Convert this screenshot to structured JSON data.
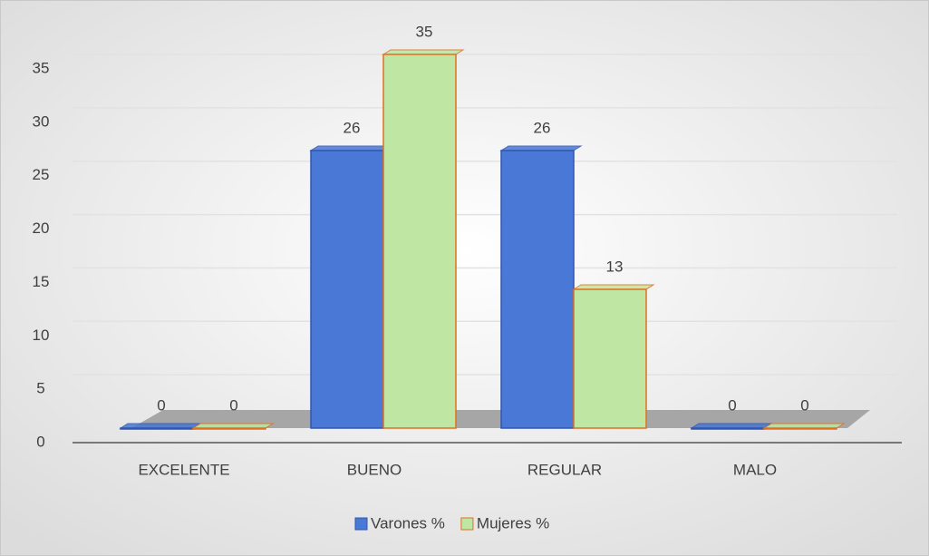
{
  "chart_data": {
    "type": "bar",
    "categories": [
      "EXCELENTE",
      "BUENO",
      "REGULAR",
      "MALO"
    ],
    "series": [
      {
        "name": "Varones %",
        "color": "#4a78d6",
        "values": [
          0,
          26,
          26,
          0
        ]
      },
      {
        "name": "Mujeres %",
        "color": "#bfe6a2",
        "values": [
          0,
          35,
          13,
          0
        ]
      }
    ],
    "ylim": [
      0,
      35
    ],
    "yticks": [
      0,
      5,
      10,
      15,
      20,
      25,
      30,
      35
    ],
    "grid": true,
    "legend": "bottom"
  }
}
